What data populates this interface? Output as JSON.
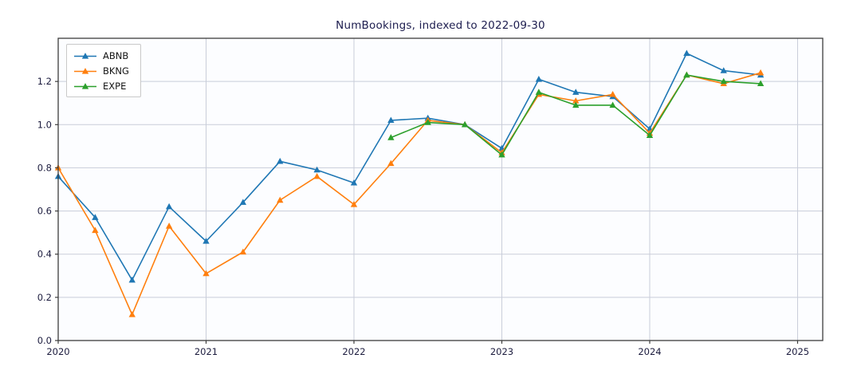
{
  "chart_data": {
    "type": "line",
    "title": "NumBookings, indexed to 2022-09-30",
    "xlabel": "",
    "ylabel": "",
    "xlim": [
      2020,
      2025.17
    ],
    "ylim": [
      0,
      1.4
    ],
    "x_ticks": [
      2020,
      2021,
      2022,
      2023,
      2024,
      2025
    ],
    "y_ticks": [
      0.0,
      0.2,
      0.4,
      0.6,
      0.8,
      1.0,
      1.2
    ],
    "grid": true,
    "legend_position": "upper-left",
    "index_note": "all series equal 1.0 at 2022-09-30",
    "marker": "triangle-up",
    "colors": {
      "grid": "#c9cdd9",
      "frame": "#3c3c3c",
      "tick_text": "#1c1c3e",
      "plot_bg": "#fcfdff"
    },
    "series": [
      {
        "name": "ABNB",
        "color": "#1f77b4",
        "x": [
          2020.0,
          2020.25,
          2020.5,
          2020.75,
          2021.0,
          2021.25,
          2021.5,
          2021.75,
          2022.0,
          2022.25,
          2022.5,
          2022.75,
          2023.0,
          2023.25,
          2023.5,
          2023.75,
          2024.0,
          2024.25,
          2024.5,
          2024.75
        ],
        "values": [
          0.76,
          0.57,
          0.28,
          0.62,
          0.46,
          0.64,
          0.83,
          0.79,
          0.73,
          1.02,
          1.03,
          1.0,
          0.89,
          1.21,
          1.15,
          1.13,
          0.98,
          1.33,
          1.25,
          1.23
        ]
      },
      {
        "name": "BKNG",
        "color": "#ff7f0e",
        "x": [
          2020.0,
          2020.25,
          2020.5,
          2020.75,
          2021.0,
          2021.25,
          2021.5,
          2021.75,
          2022.0,
          2022.25,
          2022.5,
          2022.75,
          2023.0,
          2023.25,
          2023.5,
          2023.75,
          2024.0,
          2024.25,
          2024.5,
          2024.75
        ],
        "values": [
          0.8,
          0.51,
          0.12,
          0.53,
          0.31,
          0.41,
          0.65,
          0.76,
          0.63,
          0.82,
          1.02,
          1.0,
          0.87,
          1.14,
          1.11,
          1.14,
          0.96,
          1.23,
          1.19,
          1.24
        ]
      },
      {
        "name": "EXPE",
        "color": "#2ca02c",
        "x": [
          2022.25,
          2022.5,
          2022.75,
          2023.0,
          2023.25,
          2023.5,
          2023.75,
          2024.0,
          2024.25,
          2024.5,
          2024.75
        ],
        "values": [
          0.94,
          1.01,
          1.0,
          0.86,
          1.15,
          1.09,
          1.09,
          0.95,
          1.23,
          1.2,
          1.19
        ]
      }
    ]
  }
}
